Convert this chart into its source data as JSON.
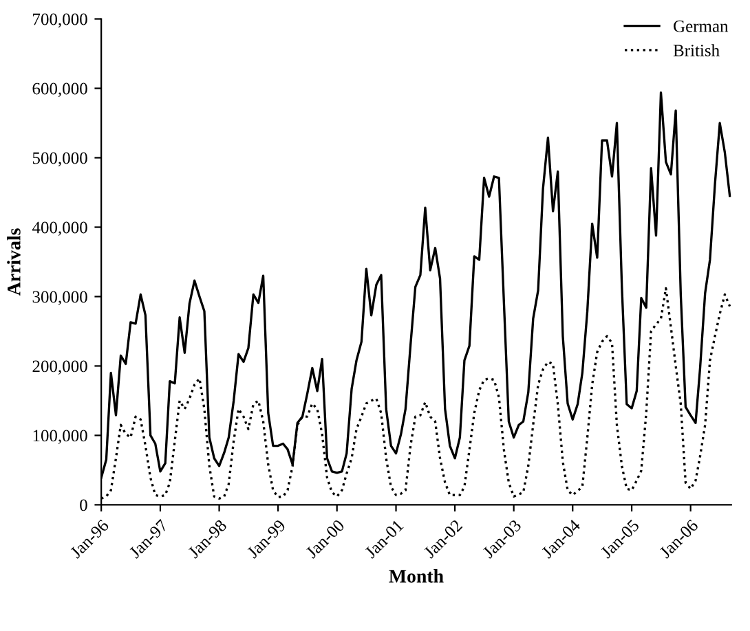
{
  "chart_data": {
    "type": "line",
    "xlabel": "Month",
    "ylabel": "Arrivals",
    "x": [
      "1996-01",
      "1996-02",
      "1996-03",
      "1996-04",
      "1996-05",
      "1996-06",
      "1996-07",
      "1996-08",
      "1996-09",
      "1996-10",
      "1996-11",
      "1996-12",
      "1997-01",
      "1997-02",
      "1997-03",
      "1997-04",
      "1997-05",
      "1997-06",
      "1997-07",
      "1997-08",
      "1997-09",
      "1997-10",
      "1997-11",
      "1997-12",
      "1998-01",
      "1998-02",
      "1998-03",
      "1998-04",
      "1998-05",
      "1998-06",
      "1998-07",
      "1998-08",
      "1998-09",
      "1998-10",
      "1998-11",
      "1998-12",
      "1999-01",
      "1999-02",
      "1999-03",
      "1999-04",
      "1999-05",
      "1999-06",
      "1999-07",
      "1999-08",
      "1999-09",
      "1999-10",
      "1999-11",
      "1999-12",
      "2000-01",
      "2000-02",
      "2000-03",
      "2000-04",
      "2000-05",
      "2000-06",
      "2000-07",
      "2000-08",
      "2000-09",
      "2000-10",
      "2000-11",
      "2000-12",
      "2001-01",
      "2001-02",
      "2001-03",
      "2001-04",
      "2001-05",
      "2001-06",
      "2001-07",
      "2001-08",
      "2001-09",
      "2001-10",
      "2001-11",
      "2001-12",
      "2002-01",
      "2002-02",
      "2002-03",
      "2002-04",
      "2002-05",
      "2002-06",
      "2002-07",
      "2002-08",
      "2002-09",
      "2002-10",
      "2002-11",
      "2002-12",
      "2003-01",
      "2003-02",
      "2003-03",
      "2003-04",
      "2003-05",
      "2003-06",
      "2003-07",
      "2003-08",
      "2003-09",
      "2003-10",
      "2003-11",
      "2003-12",
      "2004-01",
      "2004-02",
      "2004-03",
      "2004-04",
      "2004-05",
      "2004-06",
      "2004-07",
      "2004-08",
      "2004-09",
      "2004-10",
      "2004-11",
      "2004-12",
      "2005-01",
      "2005-02",
      "2005-03",
      "2005-04",
      "2005-05",
      "2005-06",
      "2005-07",
      "2005-08",
      "2005-09",
      "2005-10",
      "2005-11",
      "2005-12",
      "2006-01",
      "2006-02",
      "2006-03",
      "2006-04",
      "2006-05",
      "2006-06",
      "2006-07",
      "2006-08",
      "2006-09"
    ],
    "series": [
      {
        "name": "German",
        "color": "#000000",
        "line_style": "solid",
        "values": [
          39000,
          65000,
          190000,
          129000,
          215000,
          203000,
          263000,
          261000,
          303000,
          273000,
          100000,
          88000,
          48000,
          60000,
          178000,
          175000,
          270000,
          219000,
          290000,
          323000,
          300000,
          279000,
          97000,
          67000,
          56000,
          75000,
          97000,
          150000,
          217000,
          206000,
          226000,
          303000,
          291000,
          330000,
          132000,
          85000,
          85000,
          88000,
          80000,
          58000,
          118000,
          127000,
          160000,
          197000,
          164000,
          210000,
          67000,
          48000,
          46000,
          48000,
          74000,
          167000,
          208000,
          235000,
          340000,
          273000,
          317000,
          331000,
          138000,
          85000,
          74000,
          102000,
          138000,
          230000,
          314000,
          331000,
          428000,
          338000,
          370000,
          326000,
          138000,
          85000,
          67000,
          97000,
          208000,
          229000,
          358000,
          353000,
          471000,
          444000,
          473000,
          471000,
          291000,
          120000,
          97000,
          115000,
          120000,
          162000,
          268000,
          309000,
          455000,
          529000,
          423000,
          480000,
          243000,
          146000,
          123000,
          145000,
          190000,
          279000,
          405000,
          356000,
          525000,
          525000,
          473000,
          550000,
          314000,
          145000,
          139000,
          164000,
          298000,
          284000,
          485000,
          388000,
          594000,
          494000,
          476000,
          568000,
          303000,
          141000,
          129000,
          118000,
          197000,
          305000,
          353000,
          462000,
          550000,
          508000,
          445000
        ]
      },
      {
        "name": "British",
        "color": "#000000",
        "line_style": "dotted",
        "values": [
          9000,
          12000,
          21000,
          67000,
          115000,
          102000,
          97000,
          127000,
          123000,
          85000,
          39000,
          14000,
          12000,
          14000,
          32000,
          92000,
          150000,
          138000,
          153000,
          173000,
          182000,
          138000,
          56000,
          12000,
          9000,
          12000,
          30000,
          92000,
          138000,
          127000,
          109000,
          145000,
          150000,
          120000,
          58000,
          21000,
          11000,
          12000,
          21000,
          56000,
          115000,
          127000,
          127000,
          146000,
          138000,
          102000,
          39000,
          18000,
          12000,
          21000,
          45000,
          67000,
          109000,
          127000,
          146000,
          150000,
          153000,
          132000,
          67000,
          26000,
          14000,
          16000,
          21000,
          85000,
          127000,
          129000,
          148000,
          127000,
          120000,
          67000,
          32000,
          14000,
          14000,
          14000,
          26000,
          79000,
          132000,
          165000,
          180000,
          182000,
          180000,
          155000,
          79000,
          32000,
          12000,
          15000,
          18000,
          56000,
          115000,
          173000,
          195000,
          206000,
          203000,
          145000,
          62000,
          21000,
          14000,
          20000,
          26000,
          97000,
          173000,
          220000,
          235000,
          243000,
          233000,
          115000,
          56000,
          23000,
          21000,
          35000,
          49000,
          132000,
          250000,
          260000,
          268000,
          312000,
          256000,
          200000,
          145000,
          32000,
          23000,
          35000,
          70000,
          115000,
          208000,
          243000,
          275000,
          303000,
          286000
        ]
      }
    ],
    "xlim": [
      "1996-01",
      "2006-09-10"
    ],
    "xticks": [
      {
        "value": "1996-01",
        "label": "Jan-96"
      },
      {
        "value": "1997-01",
        "label": "Jan-97"
      },
      {
        "value": "1998-01",
        "label": "Jan-98"
      },
      {
        "value": "1999-01",
        "label": "Jan-99"
      },
      {
        "value": "2000-01",
        "label": "Jan-00"
      },
      {
        "value": "2001-01",
        "label": "Jan-01"
      },
      {
        "value": "2002-01",
        "label": "Jan-02"
      },
      {
        "value": "2003-01",
        "label": "Jan-03"
      },
      {
        "value": "2004-01",
        "label": "Jan-04"
      },
      {
        "value": "2005-01",
        "label": "Jan-05"
      },
      {
        "value": "2006-01",
        "label": "Jan-06"
      }
    ],
    "ylim": [
      0,
      700000
    ],
    "yticks": [
      0,
      {
        "value": 100000,
        "label": "100,000"
      },
      {
        "value": 200000,
        "label": "200,000"
      },
      {
        "value": 300000,
        "label": "300,000"
      },
      {
        "value": 400000,
        "label": "400,000"
      },
      {
        "value": 500000,
        "label": "500,000"
      },
      {
        "value": 600000,
        "label": "600,000"
      },
      {
        "value": 700000,
        "label": "700,000"
      }
    ],
    "grid": false,
    "legend": "top right",
    "marker": "none"
  }
}
